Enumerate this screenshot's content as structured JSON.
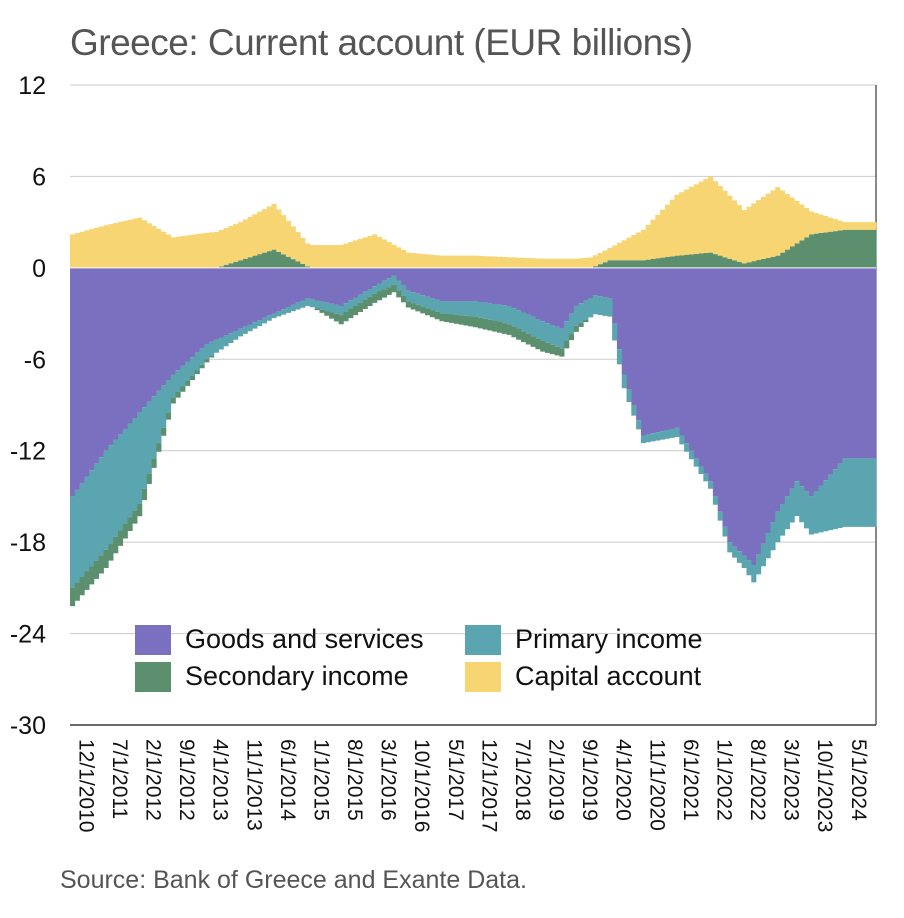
{
  "chart_data": {
    "type": "area",
    "title": "Greece: Current account (EUR billions)",
    "source": "Source: Bank of Greece and Exante Data.",
    "ylim": [
      -30,
      12
    ],
    "yticks": [
      "12",
      "6",
      "0",
      "-6",
      "-12",
      "-18",
      "-24",
      "-30"
    ],
    "ytick_values": [
      12,
      6,
      0,
      -6,
      -12,
      -18,
      -24,
      -30
    ],
    "x_start": "2010-12",
    "x_end": "2024-11",
    "xtick_labels": [
      "12/1/2010",
      "7/1/2011",
      "2/1/2012",
      "9/1/2012",
      "4/1/2013",
      "11/1/2013",
      "6/1/2014",
      "1/1/2015",
      "8/1/2015",
      "3/1/2016",
      "10/1/2016",
      "5/1/2017",
      "12/1/2017",
      "7/1/2018",
      "2/1/2019",
      "9/1/2019",
      "4/1/2020",
      "11/1/2020",
      "6/1/2021",
      "1/1/2022",
      "8/1/2022",
      "3/1/2023",
      "10/1/2023",
      "5/1/2024"
    ],
    "series": [
      {
        "name": "Goods and services",
        "color": "#7b70bf",
        "knots": [
          [
            "2010-12",
            -15.0
          ],
          [
            "2011-07",
            -12.0
          ],
          [
            "2012-02",
            -9.5
          ],
          [
            "2012-09",
            -7.0
          ],
          [
            "2013-04",
            -5.0
          ],
          [
            "2013-11",
            -4.0
          ],
          [
            "2014-06",
            -3.0
          ],
          [
            "2015-01",
            -2.0
          ],
          [
            "2015-08",
            -2.5
          ],
          [
            "2016-03",
            -1.2
          ],
          [
            "2016-07",
            -0.5
          ],
          [
            "2016-10",
            -1.5
          ],
          [
            "2017-05",
            -2.2
          ],
          [
            "2017-12",
            -2.2
          ],
          [
            "2018-07",
            -2.5
          ],
          [
            "2019-02",
            -3.5
          ],
          [
            "2019-06",
            -4.0
          ],
          [
            "2019-09",
            -2.5
          ],
          [
            "2020-01",
            -1.8
          ],
          [
            "2020-04",
            -2.0
          ],
          [
            "2020-07",
            -7.0
          ],
          [
            "2020-11",
            -11.0
          ],
          [
            "2021-06",
            -10.5
          ],
          [
            "2022-01",
            -14.0
          ],
          [
            "2022-05",
            -18.0
          ],
          [
            "2022-10",
            -19.5
          ],
          [
            "2023-03",
            -16.0
          ],
          [
            "2023-07",
            -14.0
          ],
          [
            "2023-10",
            -15.0
          ],
          [
            "2024-05",
            -12.5
          ],
          [
            "2024-11",
            -12.5
          ]
        ]
      },
      {
        "name": "Primary income",
        "color": "#5aa5b0",
        "knots": [
          [
            "2010-12",
            -6.0
          ],
          [
            "2011-07",
            -6.5
          ],
          [
            "2012-02",
            -6.0
          ],
          [
            "2012-09",
            -1.5
          ],
          [
            "2013-04",
            -1.0
          ],
          [
            "2013-11",
            -0.5
          ],
          [
            "2014-06",
            -0.3
          ],
          [
            "2015-01",
            -0.5
          ],
          [
            "2015-08",
            -0.6
          ],
          [
            "2016-03",
            -0.5
          ],
          [
            "2016-10",
            -0.7
          ],
          [
            "2017-05",
            -0.8
          ],
          [
            "2017-12",
            -1.0
          ],
          [
            "2018-07",
            -1.2
          ],
          [
            "2019-02",
            -1.3
          ],
          [
            "2019-09",
            -1.3
          ],
          [
            "2020-04",
            -1.2
          ],
          [
            "2020-11",
            -0.5
          ],
          [
            "2021-06",
            -0.6
          ],
          [
            "2022-01",
            -0.5
          ],
          [
            "2022-08",
            -0.8
          ],
          [
            "2023-03",
            -2.0
          ],
          [
            "2023-10",
            -2.5
          ],
          [
            "2024-05",
            -4.5
          ],
          [
            "2024-11",
            -4.5
          ]
        ]
      },
      {
        "name": "Secondary income",
        "color": "#5b8f6e",
        "knots": [
          [
            "2010-12",
            -1.2
          ],
          [
            "2011-07",
            -1.2
          ],
          [
            "2012-02",
            -0.8
          ],
          [
            "2012-09",
            -0.4
          ],
          [
            "2013-04",
            -0.2
          ],
          [
            "2013-11",
            0.5
          ],
          [
            "2014-06",
            1.2
          ],
          [
            "2015-01",
            0.1
          ],
          [
            "2015-08",
            -0.6
          ],
          [
            "2016-03",
            -0.6
          ],
          [
            "2016-10",
            -0.4
          ],
          [
            "2017-05",
            -0.5
          ],
          [
            "2017-12",
            -0.7
          ],
          [
            "2018-07",
            -0.7
          ],
          [
            "2019-02",
            -0.7
          ],
          [
            "2019-09",
            -0.4
          ],
          [
            "2020-04",
            0.5
          ],
          [
            "2020-11",
            0.5
          ],
          [
            "2021-06",
            0.8
          ],
          [
            "2022-01",
            1.0
          ],
          [
            "2022-08",
            0.3
          ],
          [
            "2023-03",
            0.8
          ],
          [
            "2023-10",
            2.2
          ],
          [
            "2024-05",
            2.5
          ],
          [
            "2024-11",
            2.5
          ]
        ]
      },
      {
        "name": "Capital account",
        "color": "#f7d572",
        "knots": [
          [
            "2010-12",
            2.2
          ],
          [
            "2011-07",
            2.8
          ],
          [
            "2012-02",
            3.3
          ],
          [
            "2012-09",
            2.0
          ],
          [
            "2013-04",
            2.3
          ],
          [
            "2013-11",
            2.5
          ],
          [
            "2014-06",
            3.0
          ],
          [
            "2015-01",
            1.5
          ],
          [
            "2015-08",
            1.5
          ],
          [
            "2016-03",
            2.2
          ],
          [
            "2016-10",
            1.0
          ],
          [
            "2017-05",
            0.8
          ],
          [
            "2017-12",
            0.8
          ],
          [
            "2018-07",
            0.7
          ],
          [
            "2019-02",
            0.6
          ],
          [
            "2019-09",
            0.6
          ],
          [
            "2020-04",
            0.8
          ],
          [
            "2020-11",
            2.0
          ],
          [
            "2021-06",
            4.0
          ],
          [
            "2022-01",
            5.0
          ],
          [
            "2022-08",
            3.5
          ],
          [
            "2023-03",
            4.5
          ],
          [
            "2023-10",
            1.5
          ],
          [
            "2024-05",
            0.5
          ],
          [
            "2024-11",
            0.5
          ]
        ]
      }
    ],
    "legend": [
      "Goods and services",
      "Primary income",
      "Secondary income",
      "Capital account"
    ],
    "legend_position": "lower-center",
    "grid": true
  }
}
